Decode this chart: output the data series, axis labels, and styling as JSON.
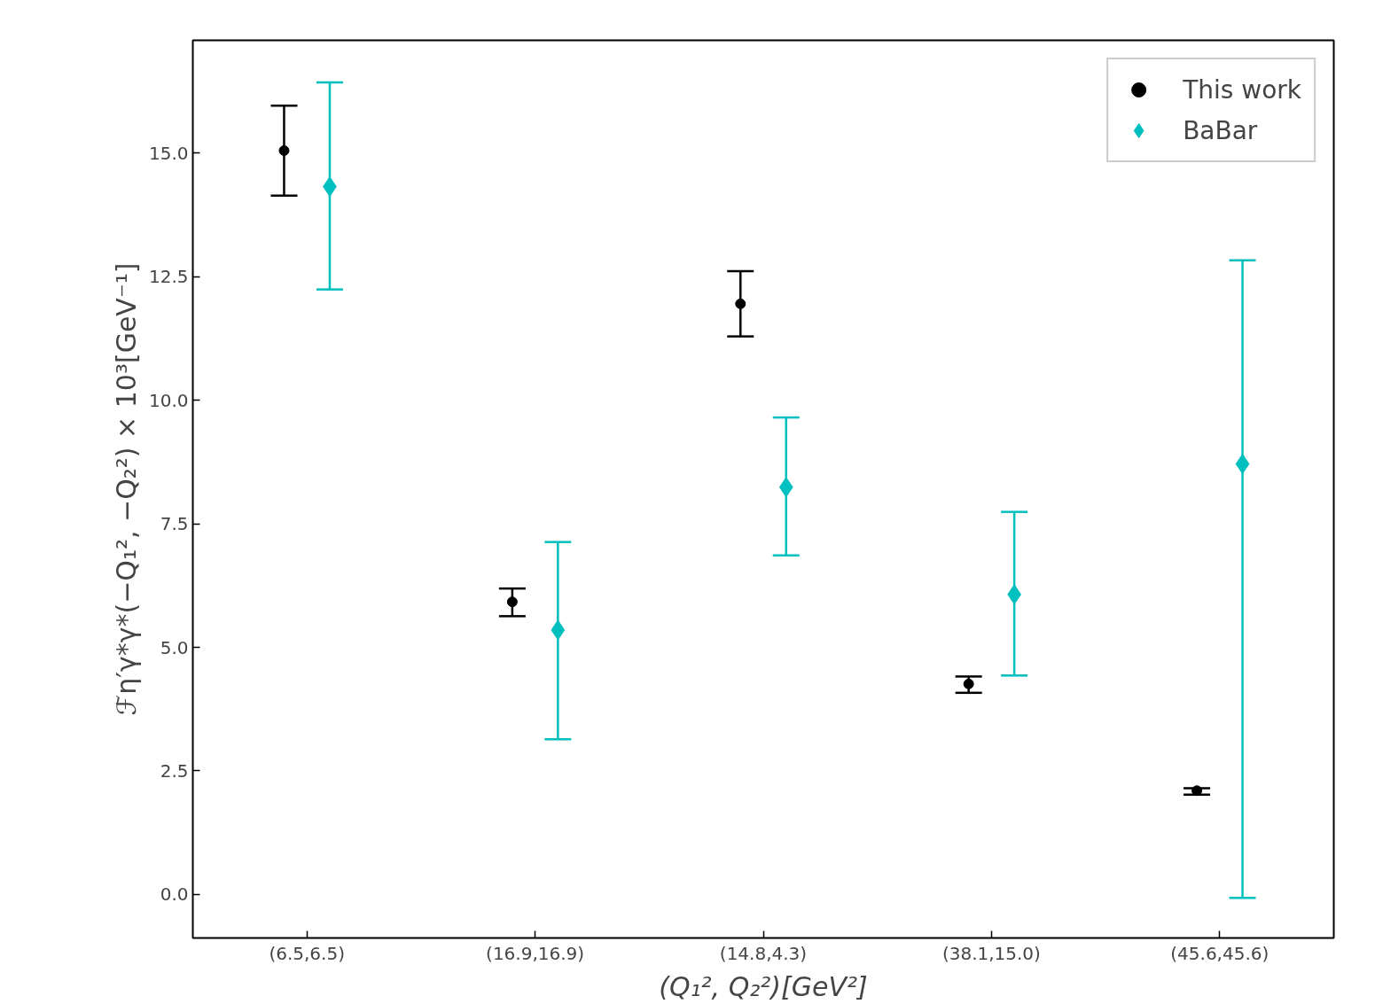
{
  "chart_data": {
    "type": "scatter",
    "xlabel": "(Q₁², Q₂²)[GeV²]",
    "ylabel": "ℱη′γ*γ*(−Q₁², −Q₂²) × 10³[GeV⁻¹]",
    "categories": [
      "(6.5,6.5)",
      "(16.9,16.9)",
      "(14.8,4.3)",
      "(38.1,15.0)",
      "(45.6,45.6)"
    ],
    "series": [
      {
        "name": "This work",
        "color": "#000000",
        "marker": "circle",
        "values": [
          15.05,
          5.92,
          11.95,
          4.26,
          2.1
        ],
        "errors": [
          [
            14.14,
            15.96
          ],
          [
            5.63,
            6.19
          ],
          [
            11.29,
            12.61
          ],
          [
            4.08,
            4.41
          ],
          [
            2.02,
            2.15
          ]
        ]
      },
      {
        "name": "BaBar",
        "color": "#00bfbf",
        "marker": "diamond",
        "values": [
          14.32,
          5.35,
          8.24,
          6.07,
          8.71
        ],
        "errors": [
          [
            12.24,
            16.43
          ],
          [
            3.14,
            7.13
          ],
          [
            6.86,
            9.65
          ],
          [
            4.43,
            7.74
          ],
          [
            -0.07,
            12.83
          ]
        ]
      }
    ],
    "ylim": [
      -0.88,
      17.28
    ],
    "yticks": [
      {
        "value": 0,
        "label": "0.0"
      },
      {
        "value": 2.5,
        "label": "2.5"
      },
      {
        "value": 5,
        "label": "5.0"
      },
      {
        "value": 7.5,
        "label": "7.5"
      },
      {
        "value": 10,
        "label": "10.0"
      },
      {
        "value": 12.5,
        "label": "12.5"
      },
      {
        "value": 15,
        "label": "15.0"
      }
    ],
    "grid": false,
    "legend": "top right"
  }
}
